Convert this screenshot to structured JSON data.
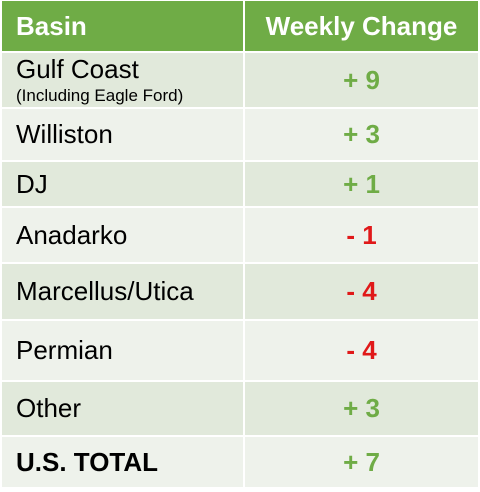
{
  "header": {
    "col_basin": "Basin",
    "col_change": "Weekly Change"
  },
  "rows": [
    {
      "basin": "Gulf Coast",
      "sub": "(Including Eagle Ford)",
      "change": "+ 9",
      "sign": "pos"
    },
    {
      "basin": "Williston",
      "change": "+ 3",
      "sign": "pos"
    },
    {
      "basin": "DJ",
      "change": "+ 1",
      "sign": "pos"
    },
    {
      "basin": "Anadarko",
      "change": "- 1",
      "sign": "neg"
    },
    {
      "basin": "Marcellus/Utica",
      "change": "- 4",
      "sign": "neg"
    },
    {
      "basin": "Permian",
      "change": "- 4",
      "sign": "neg"
    },
    {
      "basin": "Other",
      "change": "+ 3",
      "sign": "pos"
    },
    {
      "basin": "U.S. TOTAL",
      "change": "+ 7",
      "sign": "pos"
    }
  ],
  "colors": {
    "header_bg": "#6fac46",
    "positive": "#6fac46",
    "negative": "#e01919",
    "row_dark": "#e1e9db",
    "row_light": "#eef2eb"
  }
}
